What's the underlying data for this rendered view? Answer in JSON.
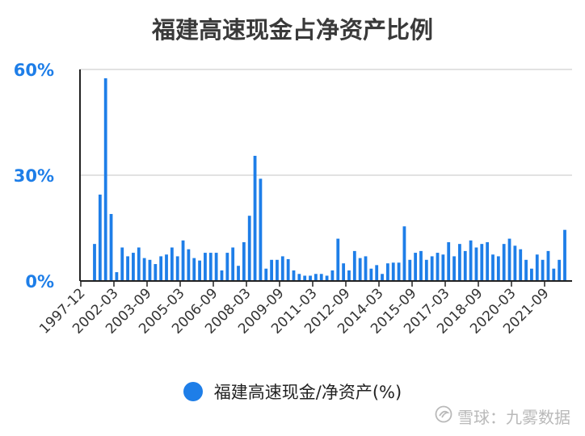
{
  "chart_data": {
    "type": "bar",
    "title": "福建高速现金占净资产比例",
    "series": [
      {
        "name": "福建高速现金/净资产(%)",
        "color": "#1e7ee8",
        "values": [
          10.5,
          24.5,
          57.5,
          19,
          2.5,
          9.5,
          7,
          8,
          9.5,
          6.5,
          6,
          4.8,
          7,
          7.5,
          9.5,
          7,
          11.5,
          9,
          6.5,
          5.8,
          8,
          8,
          8,
          3,
          8,
          9.5,
          4.3,
          11,
          18.5,
          35.5,
          29,
          3.5,
          6,
          6,
          7,
          6.2,
          3,
          2,
          1.5,
          1.5,
          2,
          2,
          1.5,
          3,
          12,
          5,
          3,
          8.5,
          6.5,
          7,
          3.5,
          4.5,
          2,
          5,
          5.2,
          5.2,
          15.5,
          6,
          8,
          8.5,
          6,
          7,
          8,
          7.5,
          11,
          7,
          10.5,
          8.5,
          11.5,
          9.5,
          10.5,
          11,
          7.5,
          7,
          10.5,
          12,
          10,
          9,
          6,
          3.5,
          7.5,
          6,
          8.5,
          3.5,
          6,
          14.5
        ]
      }
    ],
    "x_tick_labels": [
      "1997-12",
      "2002-03",
      "2003-09",
      "2005-03",
      "2006-09",
      "2008-03",
      "2009-09",
      "2011-03",
      "2012-09",
      "2014-03",
      "2015-09",
      "2017-03",
      "2018-09",
      "2020-03",
      "2021-09"
    ],
    "y_tick_labels": [
      "0%",
      "30%",
      "60%"
    ],
    "y_ticks": [
      0,
      30,
      60
    ],
    "ylim": [
      0,
      60
    ],
    "grid": true,
    "legend_position": "bottom",
    "y_label_color": "#1e7ee8",
    "gridline_color": "#d9d9d9"
  },
  "watermark": {
    "text": "雪球：九雾数据",
    "icon": "xueqiu-logo-icon"
  }
}
